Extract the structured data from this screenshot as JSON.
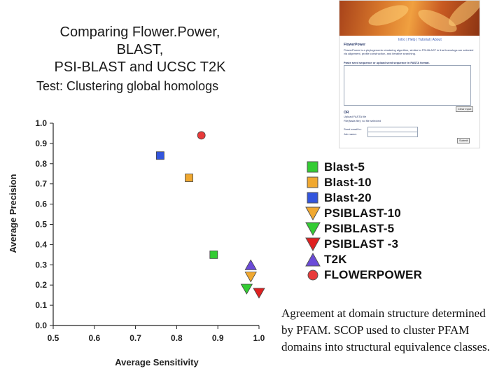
{
  "title_lines": [
    "Comparing Flower.Power,",
    "BLAST,",
    "PSI-BLAST and UCSC T2K"
  ],
  "subtitle": "Test: Clustering global homologs",
  "note": "Agreement at domain structure determined by PFAM.  SCOP used to cluster PFAM domains into structural equivalence classes.",
  "colors": {
    "green": "#33cc33",
    "orange": "#f0a830",
    "blue": "#3355dd",
    "red": "#e02020",
    "violet": "#6a4ad8",
    "redcircle": "#e83a3a"
  },
  "screenshot": {
    "app_name": "FlowerPower",
    "nav_links": "Intro | Help | Tutorial | About",
    "description": "FlowerPower is a phylogenomic clustering algorithm, similar to PSI-BLAST in that homologs are selected via alignment, profile construction, and iterative searching.",
    "prompt": "Paste seed sequence or upload seed sequence in FASTA format.",
    "clear_button": "Clear input",
    "or_label": "OR",
    "upload_label": "Upload FASTA file",
    "file_label": "File(fasta file): no file selected",
    "email_label": "Send email to: ",
    "job_label": "Job name: ",
    "submit_button": "Submit"
  },
  "chart_data": {
    "type": "scatter",
    "xlabel": "Average Sensitivity",
    "ylabel": "Average Precision",
    "xlim": [
      0.5,
      1.0
    ],
    "ylim": [
      0.0,
      1.0
    ],
    "xticks": [
      0.5,
      0.6,
      0.7,
      0.8,
      0.9,
      1.0
    ],
    "xtick_labels": [
      "0.5",
      "0.6",
      "0.7",
      "0.8",
      "0.9",
      "1.0"
    ],
    "yticks": [
      0.0,
      0.1,
      0.2,
      0.3,
      0.4,
      0.5,
      0.6,
      0.7,
      0.8,
      0.9,
      1.0
    ],
    "ytick_labels": [
      "0.0",
      "0.1",
      "0.2",
      "0.3",
      "0.4",
      "0.5",
      "0.6",
      "0.7",
      "0.8",
      "0.9",
      "1.0"
    ],
    "grid": false,
    "legend_position": "right",
    "series": [
      {
        "name": "Blast-5",
        "marker": "square",
        "color": "#33cc33",
        "x": 0.89,
        "y": 0.35
      },
      {
        "name": "Blast-10",
        "marker": "square",
        "color": "#f0a830",
        "x": 0.83,
        "y": 0.73
      },
      {
        "name": "Blast-20",
        "marker": "square",
        "color": "#3355dd",
        "x": 0.76,
        "y": 0.84
      },
      {
        "name": "PSIBLAST-10",
        "marker": "triangle-down",
        "color": "#f0a830",
        "x": 0.98,
        "y": 0.24
      },
      {
        "name": "PSIBLAST-5",
        "marker": "triangle-down",
        "color": "#33cc33",
        "x": 0.97,
        "y": 0.18
      },
      {
        "name": "PSIBLAST -3",
        "marker": "triangle-down",
        "color": "#e02020",
        "x": 1.0,
        "y": 0.16
      },
      {
        "name": "T2K",
        "marker": "triangle-up",
        "color": "#6a4ad8",
        "x": 0.98,
        "y": 0.3
      },
      {
        "name": "FLOWERPOWER",
        "marker": "circle",
        "color": "#e83a3a",
        "x": 0.86,
        "y": 0.94
      }
    ]
  }
}
